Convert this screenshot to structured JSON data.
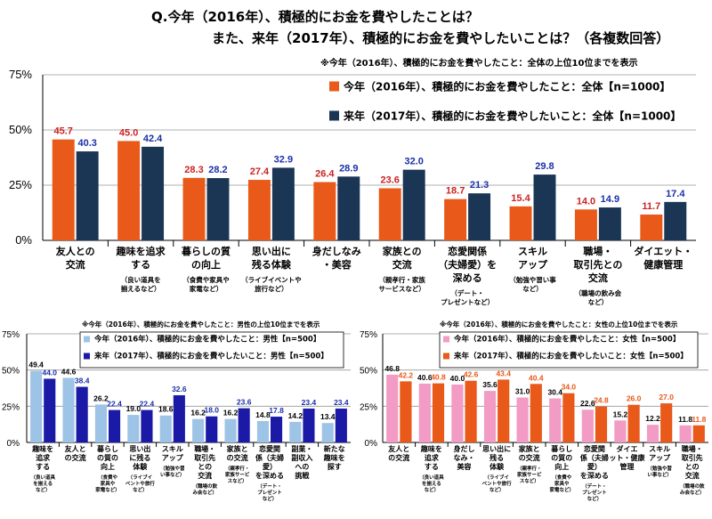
{
  "title_lines": [
    "Q.今年（2016年）、積極的にお金を費やしたことは？",
    "また、来年（2017年）、積極的にお金を費やしたいことは？（各複数回答）"
  ],
  "chart_data": [
    {
      "type": "bar",
      "note": "※今年（2016年）、積極的にお金を費やしたこと：全体の上位10位までを表示",
      "ylim": [
        0,
        75
      ],
      "yticks": [
        "0%",
        "25%",
        "50%",
        "75%"
      ],
      "categories": [
        {
          "lines": [
            "友人との",
            "交流"
          ],
          "sub": []
        },
        {
          "lines": [
            "趣味を追求",
            "する"
          ],
          "sub": [
            "（良い道具を",
            "揃えるなど）"
          ]
        },
        {
          "lines": [
            "暮らしの質",
            "の向上"
          ],
          "sub": [
            "（食費や家具や",
            "家電など）"
          ]
        },
        {
          "lines": [
            "思い出に",
            "残る体験"
          ],
          "sub": [
            "（ライブイベントや",
            "旅行など）"
          ]
        },
        {
          "lines": [
            "身だしなみ",
            "・美容"
          ],
          "sub": []
        },
        {
          "lines": [
            "家族との",
            "交流"
          ],
          "sub": [
            "（親孝行・家族",
            "サービスなど）"
          ]
        },
        {
          "lines": [
            "恋愛関係",
            "（夫婦愛）を",
            "深める"
          ],
          "sub": [
            "（デート・",
            "プレゼントなど）"
          ]
        },
        {
          "lines": [
            "スキル",
            "アップ"
          ],
          "sub": [
            "（勉強や習い事",
            "など）"
          ]
        },
        {
          "lines": [
            "職場・",
            "取引先との",
            "交流"
          ],
          "sub": [
            "（職場の飲み会",
            "など）"
          ]
        },
        {
          "lines": [
            "ダイエット・",
            "健康管理"
          ],
          "sub": []
        }
      ],
      "series": [
        {
          "name": "今年（2016年）、積極的にお金を費やしたこと：全体【n=1000】",
          "color": "#e8591a",
          "label_color": "#cc2222",
          "values": [
            45.7,
            45.0,
            28.3,
            27.4,
            26.4,
            23.6,
            18.7,
            15.4,
            14.0,
            11.7
          ]
        },
        {
          "name": "来年（2017年）、積極的にお金を費やしたいこと：全体【n=1000】",
          "color": "#1b3555",
          "label_color": "#1a2faa",
          "values": [
            40.3,
            42.4,
            28.2,
            32.9,
            28.9,
            32.0,
            21.3,
            29.8,
            14.9,
            17.4
          ]
        }
      ],
      "value_labels": [
        [
          "45.7",
          "45.0",
          "28.3",
          "27.4",
          "26.4",
          "23.6",
          "18.7",
          "15.4",
          "14.0",
          "11.7"
        ],
        [
          "40.3",
          "42.4",
          "28.2",
          "32.9",
          "28.9",
          "32.0",
          "21.3",
          "29.8",
          "14.9",
          "17.4"
        ]
      ]
    },
    {
      "type": "bar",
      "note": "※今年（2016年）、積極的にお金を費やしたこと：男性の上位10位までを表示",
      "ylim": [
        0,
        75
      ],
      "yticks": [
        "0%",
        "25%",
        "50%",
        "75%"
      ],
      "categories": [
        {
          "lines": [
            "趣味を",
            "追求",
            "する"
          ],
          "sub": [
            "（良い道具",
            "を揃える",
            "など）"
          ]
        },
        {
          "lines": [
            "友人と",
            "の交流"
          ],
          "sub": []
        },
        {
          "lines": [
            "暮らし",
            "の質の",
            "向上"
          ],
          "sub": [
            "（食費や",
            "家具や",
            "家電など）"
          ]
        },
        {
          "lines": [
            "思い出",
            "に残る",
            "体験"
          ],
          "sub": [
            "（ライブイ",
            "ベントや旅行",
            "など）"
          ]
        },
        {
          "lines": [
            "スキル",
            "アップ"
          ],
          "sub": [
            "（勉強や習",
            "い事など）"
          ]
        },
        {
          "lines": [
            "職場・",
            "取引先",
            "との",
            "交流"
          ],
          "sub": [
            "（職場の飲",
            "み会など）"
          ]
        },
        {
          "lines": [
            "家族と",
            "の交流"
          ],
          "sub": [
            "（親孝行・",
            "家族サービ",
            "スなど）"
          ]
        },
        {
          "lines": [
            "恋愛関",
            "係（夫婦",
            "愛）",
            "を深める"
          ],
          "sub": [
            "（デート・",
            "プレゼント",
            "など）"
          ]
        },
        {
          "lines": [
            "副業・",
            "副収入",
            "への",
            "挑戦"
          ],
          "sub": []
        },
        {
          "lines": [
            "新たな",
            "趣味を",
            "探す"
          ],
          "sub": []
        }
      ],
      "series": [
        {
          "name": "今年（2016年）、積極的にお金を費やしたこと：男性【n=500】",
          "color": "#9dc3e6",
          "label_color": "#000000",
          "values": [
            49.4,
            44.6,
            26.2,
            19.0,
            18.6,
            16.2,
            16.2,
            14.8,
            14.2,
            13.4
          ]
        },
        {
          "name": "来年（2017年）、積極的にお金を費やしたいこと：男性【n=500】",
          "color": "#1a1aa6",
          "label_color": "#1a2faa",
          "values": [
            44.0,
            38.4,
            22.4,
            22.4,
            32.6,
            18.0,
            23.6,
            17.8,
            23.4,
            23.4
          ]
        }
      ],
      "value_labels": [
        [
          "49.4",
          "44.6",
          "26.2",
          "19.0",
          "18.6",
          "16.2",
          "16.2",
          "14.8",
          "14.2",
          "13.4"
        ],
        [
          "44.0",
          "38.4",
          "22.4",
          "22.4",
          "32.6",
          "18.0",
          "23.6",
          "17.8",
          "23.4",
          "23.4"
        ]
      ]
    },
    {
      "type": "bar",
      "note": "※今年（2016年）、積極的にお金を費やしたこと：女性の上位10位までを表示",
      "ylim": [
        0,
        75
      ],
      "yticks": [
        "0%",
        "25%",
        "50%",
        "75%"
      ],
      "categories": [
        {
          "lines": [
            "友人と",
            "の交流"
          ],
          "sub": []
        },
        {
          "lines": [
            "趣味を",
            "追求",
            "する"
          ],
          "sub": [
            "（良い道具",
            "を揃える",
            "など）"
          ]
        },
        {
          "lines": [
            "身だし",
            "なみ・",
            "美容"
          ],
          "sub": []
        },
        {
          "lines": [
            "思い出に",
            "残る",
            "体験"
          ],
          "sub": [
            "（ライブイ",
            "ベントや旅行",
            "など）"
          ]
        },
        {
          "lines": [
            "家族と",
            "の交流"
          ],
          "sub": [
            "（親孝行・",
            "家族サービ",
            "スなど）"
          ]
        },
        {
          "lines": [
            "暮らし",
            "の質の",
            "向上"
          ],
          "sub": [
            "（食費や",
            "家具や",
            "家電など）"
          ]
        },
        {
          "lines": [
            "恋愛関",
            "係（夫婦",
            "愛）",
            "を深める"
          ],
          "sub": [
            "（デート・",
            "プレゼント",
            "など）"
          ]
        },
        {
          "lines": [
            "ダイエ",
            "ット・健康",
            "管理"
          ],
          "sub": []
        },
        {
          "lines": [
            "スキル",
            "アップ"
          ],
          "sub": [
            "（勉強や習",
            "い事など）"
          ]
        },
        {
          "lines": [
            "職場・",
            "取引先",
            "との",
            "交流"
          ],
          "sub": [
            "（職場の飲",
            "み会など）"
          ]
        }
      ],
      "series": [
        {
          "name": "今年（2016年）、積極的にお金を費やしたこと：女性【n=500】",
          "color": "#f29bc4",
          "label_color": "#000000",
          "values": [
            46.8,
            40.6,
            40.0,
            35.6,
            31.0,
            30.4,
            22.6,
            15.2,
            12.2,
            11.8
          ]
        },
        {
          "name": "来年（2017年）、積極的にお金を費やしたいこと：女性【n=500】",
          "color": "#e8591a",
          "label_color": "#e8591a",
          "values": [
            42.2,
            40.8,
            42.6,
            43.4,
            40.4,
            34.0,
            24.8,
            26.0,
            27.0,
            11.8
          ]
        }
      ],
      "value_labels": [
        [
          "46.8",
          "40.6",
          "40.0",
          "35.6",
          "31.0",
          "30.4",
          "22.6",
          "15.2",
          "12.2",
          "11.8"
        ],
        [
          "42.2",
          "40.8",
          "42.6",
          "43.4",
          "40.4",
          "34.0",
          "24.8",
          "26.0",
          "27.0",
          "11.8"
        ]
      ]
    }
  ]
}
